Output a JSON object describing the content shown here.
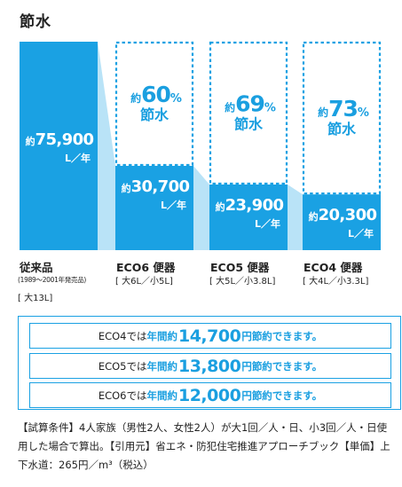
{
  "page_title": "節水",
  "chart_data": {
    "type": "bar",
    "categories": [
      "従来品",
      "ECO6 便器",
      "ECO5 便器",
      "ECO4 便器"
    ],
    "values": [
      75900,
      30700,
      23900,
      20300
    ],
    "value_labels": [
      "約75,900",
      "約30,700",
      "約23,900",
      "約20,300"
    ],
    "unit_label": "L／年",
    "ylim": [
      0,
      75900
    ],
    "grid": false,
    "category_details": [
      [
        "(1989〜2001年発売品)",
        "[ 大13L]"
      ],
      [
        "[ 大6L／小5L]"
      ],
      [
        "[ 大5L／小3.8L]"
      ],
      [
        "[ 大4L／小3.3L]"
      ]
    ],
    "reductions": [
      {
        "prefix": "約",
        "percent": "60",
        "unit": "%",
        "label": "節水"
      },
      {
        "prefix": "約",
        "percent": "69",
        "unit": "%",
        "label": "節水"
      },
      {
        "prefix": "約",
        "percent": "73",
        "unit": "%",
        "label": "節水"
      }
    ]
  },
  "savings": [
    {
      "model": "ECO4では",
      "period": "年間",
      "approx": "約",
      "amount": "14,700",
      "currency": "円",
      "tail": "節約できます。"
    },
    {
      "model": "ECO5では",
      "period": "年間",
      "approx": "約",
      "amount": "13,800",
      "currency": "円",
      "tail": "節約できます。"
    },
    {
      "model": "ECO6では",
      "period": "年間",
      "approx": "約",
      "amount": "12,000",
      "currency": "円",
      "tail": "節約できます。"
    }
  ],
  "footnote": "【試算条件】4人家族（男性2人、女性2人）が大1回／人・日、小3回／人・日使用した場合で算出。【引用元】省エネ・防犯住宅推進アプローチブック【単価】上下水道：265円／m³（税込）",
  "colors": {
    "bar": "#1aa1e3",
    "ghost": "#b9e3f7",
    "text": "#222222",
    "accent": "#1a9fe0"
  }
}
